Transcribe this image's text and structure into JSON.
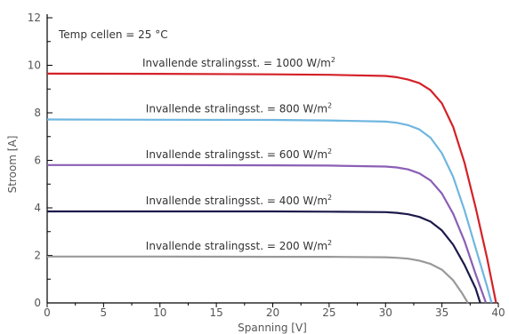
{
  "chart_data": {
    "type": "line",
    "xlabel": "Spanning [V]",
    "ylabel": "Stroom [A]",
    "xlim": [
      0,
      40
    ],
    "ylim": [
      0,
      12
    ],
    "xticks": [
      0,
      5,
      10,
      15,
      20,
      25,
      30,
      35,
      40
    ],
    "yticks": [
      0,
      2,
      4,
      6,
      8,
      10,
      12
    ],
    "grid": false,
    "annotation": "Temp cellen = 25 °C",
    "series": [
      {
        "label_main": "Invallende stralingsst. = 1000 W/m",
        "label_sup": "2",
        "color": "#d42128",
        "x": [
          0,
          10,
          20,
          25,
          30,
          31,
          32,
          33,
          34,
          35,
          36,
          37,
          38,
          39,
          39.8
        ],
        "y": [
          9.65,
          9.64,
          9.62,
          9.6,
          9.55,
          9.5,
          9.4,
          9.25,
          8.95,
          8.4,
          7.4,
          5.9,
          4.0,
          1.9,
          0
        ]
      },
      {
        "label_main": "Invallende stralingsst. = 800 W/m",
        "label_sup": "2",
        "color": "#6fb6e0",
        "x": [
          0,
          10,
          20,
          25,
          30,
          31,
          32,
          33,
          34,
          35,
          36,
          37,
          38,
          39,
          39.4
        ],
        "y": [
          7.72,
          7.71,
          7.7,
          7.68,
          7.63,
          7.58,
          7.48,
          7.3,
          6.95,
          6.3,
          5.3,
          3.9,
          2.3,
          0.7,
          0
        ]
      },
      {
        "label_main": "Invallende stralingsst. = 600 W/m",
        "label_sup": "2",
        "color": "#8a5fb5",
        "x": [
          0,
          10,
          20,
          25,
          30,
          31,
          32,
          33,
          34,
          35,
          36,
          37,
          38,
          38.9
        ],
        "y": [
          5.8,
          5.8,
          5.79,
          5.78,
          5.74,
          5.7,
          5.62,
          5.45,
          5.15,
          4.6,
          3.75,
          2.6,
          1.2,
          0
        ]
      },
      {
        "label_main": "Invallende stralingsst. = 400 W/m",
        "label_sup": "2",
        "color": "#1c1a4a",
        "x": [
          0,
          10,
          20,
          25,
          30,
          31,
          32,
          33,
          34,
          35,
          36,
          37,
          38,
          38.4
        ],
        "y": [
          3.85,
          3.85,
          3.85,
          3.84,
          3.82,
          3.79,
          3.73,
          3.62,
          3.42,
          3.05,
          2.45,
          1.6,
          0.6,
          0
        ]
      },
      {
        "label_main": "Invallende stralingsst. = 200 W/m",
        "label_sup": "2",
        "color": "#999999",
        "x": [
          0,
          10,
          20,
          25,
          30,
          31,
          32,
          33,
          34,
          35,
          36,
          36.8,
          37.3
        ],
        "y": [
          1.95,
          1.95,
          1.94,
          1.94,
          1.92,
          1.9,
          1.86,
          1.78,
          1.64,
          1.4,
          0.95,
          0.4,
          0
        ]
      }
    ]
  }
}
